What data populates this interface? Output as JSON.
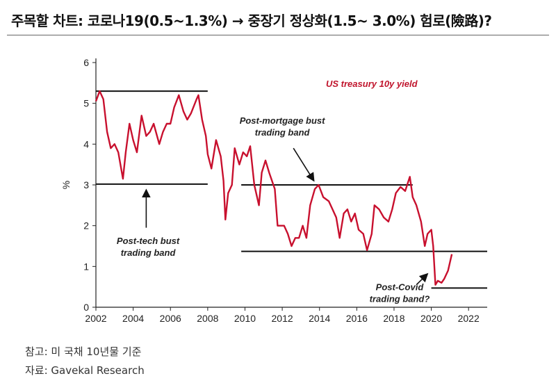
{
  "header": {
    "title": "주목할 차트: 코로나19(0.5~1.3%) → 중장기 정상화(1.5~ 3.0%) 험로(險路)?"
  },
  "footer": {
    "note": "참고: 미 국채 10년물 기준",
    "source": "자료: Gavekal Research"
  },
  "colors": {
    "series": "#c8102e",
    "band": "#111111",
    "axis": "#222222"
  },
  "chart_data": {
    "type": "line",
    "title": "",
    "xlabel": "",
    "ylabel": "%",
    "xlim": [
      2002,
      2023
    ],
    "ylim": [
      0,
      6
    ],
    "x_ticks": [
      "2002",
      "2004",
      "2006",
      "2008",
      "2010",
      "2012",
      "2014",
      "2016",
      "2018",
      "2020",
      "2022"
    ],
    "y_ticks": [
      "0",
      "1",
      "2",
      "3",
      "4",
      "5",
      "6"
    ],
    "grid": false,
    "series": [
      {
        "name": "US treasury 10y yield",
        "points": [
          [
            2002.0,
            5.05
          ],
          [
            2002.2,
            5.3
          ],
          [
            2002.4,
            5.1
          ],
          [
            2002.6,
            4.3
          ],
          [
            2002.8,
            3.9
          ],
          [
            2003.0,
            4.0
          ],
          [
            2003.2,
            3.8
          ],
          [
            2003.45,
            3.15
          ],
          [
            2003.6,
            3.8
          ],
          [
            2003.8,
            4.5
          ],
          [
            2004.0,
            4.1
          ],
          [
            2004.2,
            3.8
          ],
          [
            2004.45,
            4.7
          ],
          [
            2004.7,
            4.2
          ],
          [
            2004.9,
            4.3
          ],
          [
            2005.1,
            4.5
          ],
          [
            2005.4,
            4.0
          ],
          [
            2005.6,
            4.3
          ],
          [
            2005.8,
            4.5
          ],
          [
            2006.0,
            4.5
          ],
          [
            2006.2,
            4.9
          ],
          [
            2006.45,
            5.2
          ],
          [
            2006.7,
            4.8
          ],
          [
            2006.9,
            4.6
          ],
          [
            2007.1,
            4.75
          ],
          [
            2007.4,
            5.1
          ],
          [
            2007.5,
            5.2
          ],
          [
            2007.7,
            4.6
          ],
          [
            2007.9,
            4.2
          ],
          [
            2008.0,
            3.75
          ],
          [
            2008.2,
            3.4
          ],
          [
            2008.45,
            4.1
          ],
          [
            2008.7,
            3.7
          ],
          [
            2008.85,
            3.1
          ],
          [
            2008.95,
            2.15
          ],
          [
            2009.1,
            2.8
          ],
          [
            2009.3,
            3.0
          ],
          [
            2009.45,
            3.9
          ],
          [
            2009.7,
            3.5
          ],
          [
            2009.9,
            3.8
          ],
          [
            2010.1,
            3.7
          ],
          [
            2010.28,
            3.95
          ],
          [
            2010.5,
            3.0
          ],
          [
            2010.75,
            2.5
          ],
          [
            2010.9,
            3.3
          ],
          [
            2011.1,
            3.6
          ],
          [
            2011.3,
            3.3
          ],
          [
            2011.6,
            2.9
          ],
          [
            2011.75,
            2.0
          ],
          [
            2011.9,
            2.0
          ],
          [
            2012.1,
            2.0
          ],
          [
            2012.3,
            1.8
          ],
          [
            2012.5,
            1.5
          ],
          [
            2012.7,
            1.7
          ],
          [
            2012.9,
            1.7
          ],
          [
            2013.1,
            2.0
          ],
          [
            2013.3,
            1.7
          ],
          [
            2013.5,
            2.5
          ],
          [
            2013.75,
            2.9
          ],
          [
            2013.95,
            3.0
          ],
          [
            2014.2,
            2.7
          ],
          [
            2014.5,
            2.6
          ],
          [
            2014.7,
            2.4
          ],
          [
            2014.9,
            2.2
          ],
          [
            2015.08,
            1.7
          ],
          [
            2015.3,
            2.3
          ],
          [
            2015.5,
            2.4
          ],
          [
            2015.7,
            2.1
          ],
          [
            2015.9,
            2.3
          ],
          [
            2016.1,
            1.9
          ],
          [
            2016.35,
            1.8
          ],
          [
            2016.55,
            1.4
          ],
          [
            2016.8,
            1.8
          ],
          [
            2016.95,
            2.5
          ],
          [
            2017.2,
            2.4
          ],
          [
            2017.45,
            2.2
          ],
          [
            2017.7,
            2.1
          ],
          [
            2017.9,
            2.4
          ],
          [
            2018.1,
            2.8
          ],
          [
            2018.35,
            2.95
          ],
          [
            2018.6,
            2.85
          ],
          [
            2018.85,
            3.2
          ],
          [
            2019.0,
            2.7
          ],
          [
            2019.2,
            2.5
          ],
          [
            2019.45,
            2.1
          ],
          [
            2019.65,
            1.5
          ],
          [
            2019.8,
            1.8
          ],
          [
            2020.0,
            1.9
          ],
          [
            2020.1,
            1.5
          ],
          [
            2020.22,
            0.55
          ],
          [
            2020.35,
            0.65
          ],
          [
            2020.55,
            0.6
          ],
          [
            2020.7,
            0.7
          ],
          [
            2020.9,
            0.9
          ],
          [
            2021.1,
            1.3
          ]
        ]
      }
    ],
    "bands": [
      {
        "x0": 2002.0,
        "x1": 2008.0,
        "y": 5.3
      },
      {
        "x0": 2002.0,
        "x1": 2008.0,
        "y": 3.02
      },
      {
        "x0": 2009.8,
        "x1": 2019.0,
        "y": 3.0
      },
      {
        "x0": 2009.8,
        "x1": 2023.0,
        "y": 1.37
      },
      {
        "x0": 2020.0,
        "x1": 2023.0,
        "y": 0.47
      }
    ],
    "annotations": [
      {
        "key": "us-treasury",
        "lines": [
          "US treasury 10y yield"
        ],
        "x": 2016.8,
        "y": 5.4,
        "color": "red"
      },
      {
        "key": "post-mortgage",
        "lines": [
          "Post-mortgage bust",
          "trading band"
        ],
        "x": 2012.0,
        "y": 4.5,
        "color": "black"
      },
      {
        "key": "post-tech",
        "lines": [
          "Post-tech bust",
          "trading band"
        ],
        "x": 2004.8,
        "y": 1.55,
        "color": "black"
      },
      {
        "key": "post-covid",
        "lines": [
          "Post-Covid",
          "trading band?"
        ],
        "x": 2018.3,
        "y": 0.42,
        "color": "black"
      }
    ],
    "arrows": [
      {
        "x0": 2004.7,
        "y0": 1.95,
        "x1": 2004.7,
        "y1": 2.88
      },
      {
        "x0": 2012.6,
        "y0": 3.9,
        "x1": 2013.7,
        "y1": 3.1
      },
      {
        "x0": 2019.2,
        "y0": 0.55,
        "x1": 2019.8,
        "y1": 0.82
      }
    ]
  }
}
